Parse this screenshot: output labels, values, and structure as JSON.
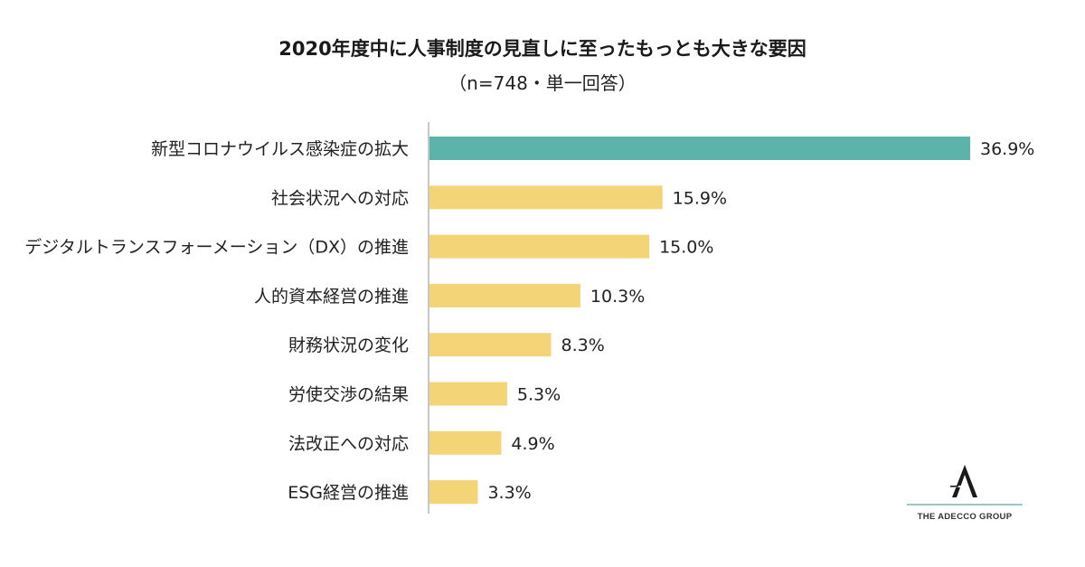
{
  "header": {
    "title": "2020年度中に人事制度の見直しに至ったもっとも大きな要因",
    "subtitle": "（n=748・単一回答）"
  },
  "chart_data": {
    "type": "bar",
    "orientation": "horizontal",
    "title": "2020年度中に人事制度の見直しに至ったもっとも大きな要因",
    "subtitle": "（n=748・単一回答）",
    "categories": [
      "新型コロナウイルス感染症の拡大",
      "社会状況への対応",
      "デジタルトランスフォーメーション（DX）の推進",
      "人的資本経営の推進",
      "財務状況の変化",
      "労使交渉の結果",
      "法改正への対応",
      "ESG経営の推進"
    ],
    "values": [
      36.9,
      15.9,
      15.0,
      10.3,
      8.3,
      5.3,
      4.9,
      3.3
    ],
    "value_labels": [
      "36.9%",
      "15.9%",
      "15.0%",
      "10.3%",
      "8.3%",
      "5.3%",
      "4.9%",
      "3.3%"
    ],
    "unit": "%",
    "colors": {
      "highlight": "#5cb3aa",
      "default": "#f3d577",
      "axis": "#c8c8c8"
    },
    "highlight_index": 0,
    "xlim": [
      0,
      36.9
    ],
    "grid": false,
    "legend": "none"
  },
  "logo": {
    "name": "adecco-logo",
    "text": "THE ADECCO GROUP"
  }
}
